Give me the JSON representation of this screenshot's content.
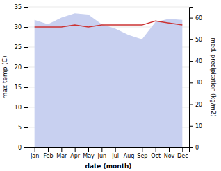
{
  "chart_data": {
    "type": "line",
    "categories": [
      "Jan",
      "Feb",
      "Mar",
      "Apr",
      "May",
      "Jun",
      "Jul",
      "Aug",
      "Sep",
      "Oct",
      "Nov",
      "Dec"
    ],
    "series": [
      {
        "type": "area",
        "axis": "y2",
        "color": "#c8d0f0",
        "values": [
          59.0,
          57.0,
          60.0,
          62.0,
          61.5,
          57.0,
          55.0,
          52.0,
          50.0,
          58.0,
          59.5,
          59.0
        ]
      },
      {
        "type": "line",
        "axis": "y",
        "color": "#cc3333",
        "values": [
          30.0,
          30.0,
          30.0,
          30.5,
          30.0,
          30.5,
          30.5,
          30.5,
          30.5,
          31.5,
          31.0,
          30.5
        ]
      }
    ],
    "xlabel": "date (month)",
    "ylabel": "max temp (C)",
    "y2label": "med. precipitation (kg/m2)",
    "ylim": [
      0,
      35
    ],
    "yticks": [
      0,
      5,
      10,
      15,
      20,
      25,
      30,
      35
    ],
    "y2lim": [
      0,
      65
    ],
    "y2ticks": [
      0,
      10,
      20,
      30,
      40,
      50,
      60
    ],
    "grid": true
  }
}
